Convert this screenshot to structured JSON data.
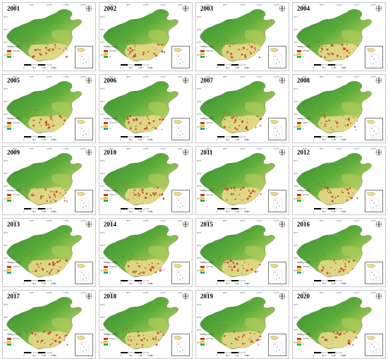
{
  "panels": [
    {
      "year": "2001",
      "max_label": "2265.49"
    },
    {
      "year": "2002",
      "max_label": "2272.84"
    },
    {
      "year": "2003",
      "max_label": "2248.56"
    },
    {
      "year": "2004",
      "max_label": "2256.38"
    },
    {
      "year": "2005",
      "max_label": "2245.28"
    },
    {
      "year": "2006",
      "max_label": "2253.18"
    },
    {
      "year": "2007",
      "max_label": "2238.42"
    },
    {
      "year": "2008",
      "max_label": "2246.73"
    },
    {
      "year": "2009",
      "max_label": "2231.36"
    },
    {
      "year": "2010",
      "max_label": "2262.15"
    },
    {
      "year": "2011",
      "max_label": "2241.92"
    },
    {
      "year": "2012",
      "max_label": "2255.47"
    },
    {
      "year": "2013",
      "max_label": "2269.13"
    },
    {
      "year": "2014",
      "max_label": "2258.66"
    },
    {
      "year": "2015",
      "max_label": "2276.28"
    },
    {
      "year": "2016",
      "max_label": "2263.84"
    },
    {
      "year": "2017",
      "max_label": "2271.55"
    },
    {
      "year": "2018",
      "max_label": "2264.11"
    },
    {
      "year": "2019",
      "max_label": "2273.69"
    },
    {
      "year": "2020",
      "max_label": "2278.22"
    }
  ],
  "legend": {
    "title": "NPP(g C/m²)",
    "min_label": "0",
    "colors": [
      "#c0392b",
      "#f1c40f",
      "#27ae60"
    ]
  },
  "scale": {
    "labels": [
      "0",
      "600",
      "1200",
      "1800"
    ],
    "unit": "km"
  },
  "top_ticks": [
    "80°E",
    "90°E",
    "100°E",
    "110°E",
    "120°E"
  ],
  "side_ticks": [
    "50°N",
    "40°N",
    "30°N",
    "20°N"
  ],
  "compass_label": "N",
  "colors": {
    "green_dark": "#2e8b2e",
    "green_mid": "#5cab3a",
    "green_light": "#a7c957",
    "yellow": "#e9d98b",
    "red": "#c0392b"
  }
}
